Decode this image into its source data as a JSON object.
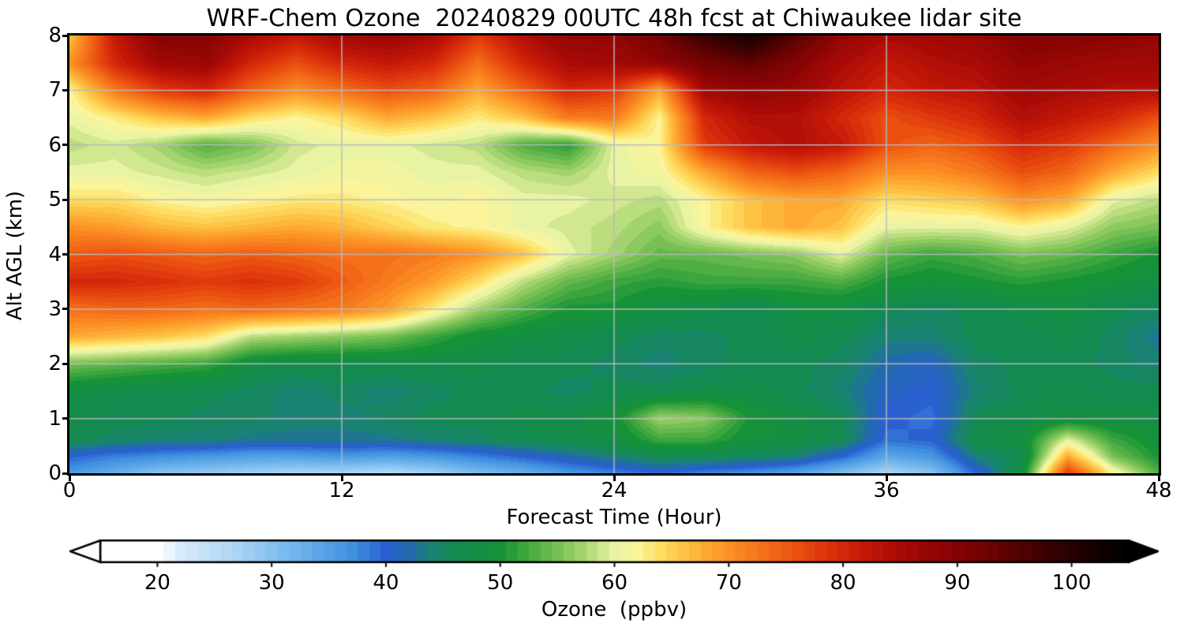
{
  "figure": {
    "title": "WRF-Chem Ozone  20240829 00UTC 48h fcst at Chiwaukee lidar site"
  },
  "chart_data": {
    "type": "heatmap",
    "title": "WRF-Chem Ozone  20240829 00UTC 48h fcst at Chiwaukee lidar site",
    "xlabel": "Forecast Time (Hour)",
    "ylabel": "Alt AGL (km)",
    "colorbar_label": "Ozone  (ppbv)",
    "xlim": [
      0,
      48
    ],
    "ylim": [
      0,
      8
    ],
    "x_ticks": [
      0,
      12,
      24,
      36,
      48
    ],
    "y_ticks": [
      0,
      1,
      2,
      3,
      4,
      5,
      6,
      7,
      8
    ],
    "x_gridlines": [
      12,
      24,
      36
    ],
    "y_gridlines": [
      1,
      2,
      3,
      4,
      5,
      6,
      7
    ],
    "grid": true,
    "grid_color": "#b9b9c0",
    "colorbar_ticks": [
      20,
      30,
      40,
      50,
      60,
      70,
      80,
      90,
      100
    ],
    "colorbar_range": [
      15,
      105
    ],
    "colorbar_extend": "both",
    "colormap_stops": [
      [
        15,
        "#ffffff"
      ],
      [
        20,
        "#ffffff"
      ],
      [
        22,
        "#d9eafb"
      ],
      [
        27,
        "#a9d4f5"
      ],
      [
        32,
        "#70b5ec"
      ],
      [
        37,
        "#4090e0"
      ],
      [
        40,
        "#2a60d0"
      ],
      [
        42,
        "#226aae"
      ],
      [
        44,
        "#1a8273"
      ],
      [
        46,
        "#128a50"
      ],
      [
        50,
        "#169336"
      ],
      [
        53,
        "#4fae43"
      ],
      [
        56,
        "#8cc95f"
      ],
      [
        58,
        "#badd7d"
      ],
      [
        60,
        "#e9f3a4"
      ],
      [
        62,
        "#fbf49b"
      ],
      [
        64,
        "#fede62"
      ],
      [
        67,
        "#fdb53a"
      ],
      [
        70,
        "#fc9025"
      ],
      [
        73,
        "#f4711a"
      ],
      [
        76,
        "#ea4f10"
      ],
      [
        79,
        "#d92f0b"
      ],
      [
        82,
        "#c31708"
      ],
      [
        85,
        "#a80b06"
      ],
      [
        89,
        "#8b0404"
      ],
      [
        93,
        "#6b0303"
      ],
      [
        97,
        "#420202"
      ],
      [
        101,
        "#1c0100"
      ],
      [
        105,
        "#000000"
      ]
    ],
    "x_hours": [
      0,
      2,
      4,
      6,
      8,
      10,
      12,
      14,
      16,
      18,
      20,
      22,
      24,
      26,
      28,
      30,
      32,
      34,
      36,
      38,
      40,
      42,
      44,
      46,
      48
    ],
    "y_alt_km": [
      8,
      7.5,
      7,
      6.5,
      6,
      5.5,
      5,
      4.5,
      4,
      3.5,
      3,
      2.5,
      2,
      1.5,
      1,
      0.6,
      0.3,
      0
    ],
    "values_ppbv": [
      [
        66,
        82,
        90,
        90,
        85,
        82,
        86,
        87,
        85,
        78,
        84,
        88,
        88,
        92,
        98,
        102,
        95,
        88,
        85,
        86,
        87,
        90,
        90,
        89,
        88
      ],
      [
        70,
        80,
        86,
        87,
        80,
        76,
        80,
        82,
        80,
        73,
        80,
        85,
        86,
        88,
        92,
        94,
        90,
        85,
        82,
        84,
        85,
        88,
        87,
        86,
        86
      ],
      [
        62,
        72,
        78,
        80,
        74,
        70,
        73,
        76,
        74,
        68,
        74,
        80,
        78,
        68,
        86,
        88,
        87,
        83,
        80,
        82,
        83,
        86,
        85,
        84,
        84
      ],
      [
        60,
        63,
        66,
        68,
        64,
        62,
        64,
        68,
        66,
        63,
        66,
        72,
        72,
        62,
        80,
        84,
        84,
        80,
        76,
        78,
        80,
        84,
        82,
        80,
        76
      ],
      [
        58,
        59,
        57,
        53,
        55,
        59,
        60,
        60,
        59,
        58,
        53,
        51,
        60,
        62,
        78,
        82,
        84,
        82,
        76,
        74,
        76,
        80,
        78,
        74,
        70
      ],
      [
        60,
        60,
        59,
        58,
        59,
        60,
        61,
        61,
        60,
        60,
        58,
        57,
        60,
        61,
        68,
        74,
        76,
        74,
        70,
        70,
        72,
        76,
        74,
        68,
        64
      ],
      [
        64,
        64,
        62,
        61,
        62,
        63,
        63,
        62,
        61,
        62,
        60,
        60,
        59,
        58,
        62,
        66,
        68,
        68,
        64,
        65,
        66,
        70,
        68,
        60,
        58
      ],
      [
        70,
        69,
        67,
        66,
        67,
        68,
        67,
        65,
        63,
        62,
        60,
        59,
        58,
        56,
        62,
        66,
        68,
        66,
        60,
        60,
        60,
        62,
        60,
        56,
        55
      ],
      [
        75,
        76,
        75,
        74,
        75,
        74,
        73,
        73,
        72,
        70,
        66,
        60,
        57,
        54,
        54,
        55,
        56,
        60,
        54,
        52,
        53,
        55,
        54,
        52,
        50
      ],
      [
        80,
        80,
        79,
        78,
        79,
        78,
        75,
        72,
        69,
        64,
        58,
        54,
        52,
        51,
        52,
        52,
        52,
        53,
        50,
        49,
        50,
        51,
        50,
        49,
        48
      ],
      [
        73,
        74,
        74,
        73,
        74,
        73,
        72,
        69,
        63,
        57,
        53,
        50,
        50,
        48,
        47,
        46,
        48,
        48,
        46,
        45,
        46,
        47,
        48,
        46,
        45
      ],
      [
        68,
        67,
        66,
        64,
        58,
        57,
        56,
        55,
        52,
        49,
        48,
        47,
        46,
        45,
        45,
        46,
        47,
        46,
        44,
        44,
        46,
        46,
        47,
        45,
        43
      ],
      [
        55,
        54,
        53,
        52,
        48,
        47,
        47,
        47,
        47,
        47,
        46,
        46,
        45,
        44,
        45,
        46,
        46,
        45,
        42,
        41,
        45,
        46,
        46,
        45,
        44
      ],
      [
        48,
        47,
        46,
        46,
        45,
        44,
        45,
        44,
        45,
        46,
        46,
        45,
        46,
        46,
        47,
        47,
        46,
        44,
        41,
        40,
        44,
        46,
        47,
        46,
        46
      ],
      [
        47,
        46,
        46,
        45,
        45,
        44,
        44,
        45,
        46,
        46,
        47,
        47,
        49,
        57,
        56,
        50,
        48,
        46,
        40,
        39,
        46,
        47,
        48,
        48,
        48
      ],
      [
        46,
        45,
        44,
        44,
        43,
        43,
        43,
        43,
        44,
        45,
        46,
        47,
        48,
        52,
        52,
        49,
        48,
        46,
        39,
        40,
        47,
        48,
        60,
        52,
        49
      ],
      [
        40,
        38,
        37,
        36,
        35,
        35,
        36,
        35,
        36,
        38,
        40,
        42,
        44,
        46,
        46,
        45,
        44,
        40,
        34,
        36,
        44,
        46,
        68,
        55,
        50
      ],
      [
        36,
        33,
        30,
        29,
        28,
        27,
        27,
        26,
        28,
        31,
        33,
        36,
        38,
        40,
        38,
        37,
        35,
        31,
        27,
        30,
        40,
        48,
        78,
        62,
        53
      ]
    ]
  }
}
